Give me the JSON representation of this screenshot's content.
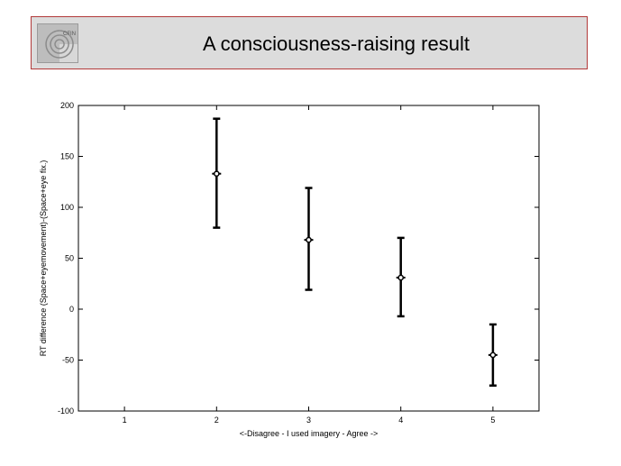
{
  "slide": {
    "title": "A consciousness-raising result",
    "logo_text": "CFIN"
  },
  "colors": {
    "banner_background": "#dcdcdc",
    "banner_border": "#b23a3a",
    "ink": "#000000"
  },
  "chart_data": {
    "type": "scatter",
    "title": "",
    "xlabel": "<-Disagree - I used imagery - Agree ->",
    "ylabel": "RT difference (Space+eyemovement)-(Space+eye fix.)",
    "xlim": [
      0.5,
      5.5
    ],
    "ylim": [
      -100,
      200
    ],
    "xticks": [
      1,
      2,
      3,
      4,
      5
    ],
    "yticks": [
      -100,
      -50,
      0,
      50,
      100,
      150,
      200
    ],
    "grid": false,
    "error_bars": true,
    "points": [
      {
        "x": 2,
        "y": 133,
        "lower": 80,
        "upper": 187
      },
      {
        "x": 3,
        "y": 68,
        "lower": 19,
        "upper": 119
      },
      {
        "x": 4,
        "y": 31,
        "lower": -7,
        "upper": 70
      },
      {
        "x": 5,
        "y": -45,
        "lower": -75,
        "upper": -15
      }
    ]
  }
}
